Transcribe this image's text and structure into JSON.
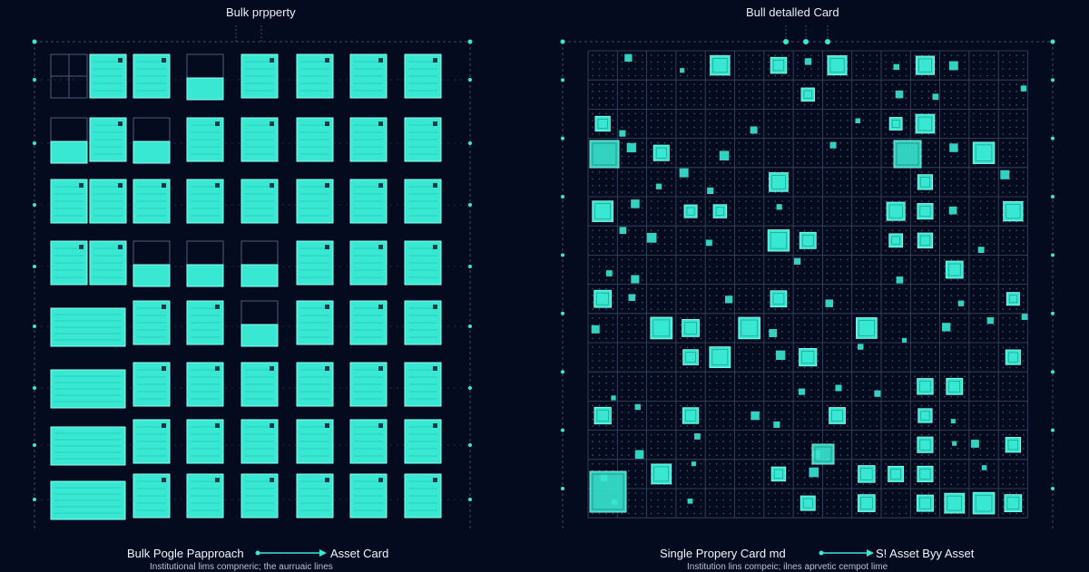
{
  "left_panel": {
    "title": "Bulk prpperty",
    "caption_left": "Bulk Pogle Papproach",
    "caption_right": "Asset Card",
    "subcaption": "Institutional lims compneric; the aurruaic lines"
  },
  "right_panel": {
    "title": "Bull detalled Card",
    "caption_left": "Single Propery Card md",
    "caption_right": "S! Asset Byy Asset",
    "subcaption": "Institution lins compeic; ilnes aprvetic cempot lime"
  },
  "colors": {
    "background": "#050b1f",
    "accent": "#38e8d2",
    "grid_line": "#3a4a66"
  }
}
